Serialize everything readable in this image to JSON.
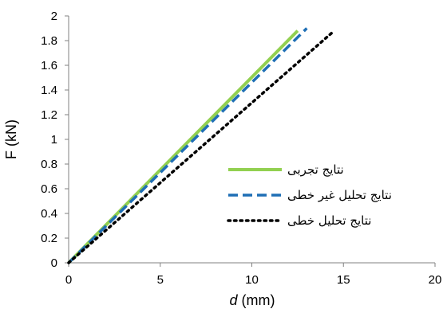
{
  "chart_data": {
    "type": "line",
    "title": "",
    "xlabel": "d",
    "xlabel_unit": "(mm)",
    "ylabel": "F (kN)",
    "xlim": [
      0,
      20
    ],
    "ylim": [
      0,
      2
    ],
    "x_ticks": [
      "0",
      "5",
      "10",
      "15",
      "20"
    ],
    "y_ticks": [
      "0",
      "0.2",
      "0.4",
      "0.6",
      "0.8",
      "1",
      "1.2",
      "1.4",
      "1.6",
      "1.8",
      "2"
    ],
    "grid": false,
    "legend_position": "right",
    "series": [
      {
        "name": "نتایج تجربی",
        "style": "solid",
        "color": "#92D050",
        "points": [
          [
            0,
            0
          ],
          [
            12.5,
            1.88
          ]
        ]
      },
      {
        "name": "نتایج تحلیل غیر خطی",
        "style": "dashed",
        "color": "#1F6FB5",
        "points": [
          [
            0,
            0
          ],
          [
            13.0,
            1.9
          ]
        ]
      },
      {
        "name": "نتایج تحلیل خطی",
        "style": "dotted",
        "color": "#000000",
        "points": [
          [
            0,
            0
          ],
          [
            14.5,
            1.88
          ]
        ]
      }
    ]
  }
}
